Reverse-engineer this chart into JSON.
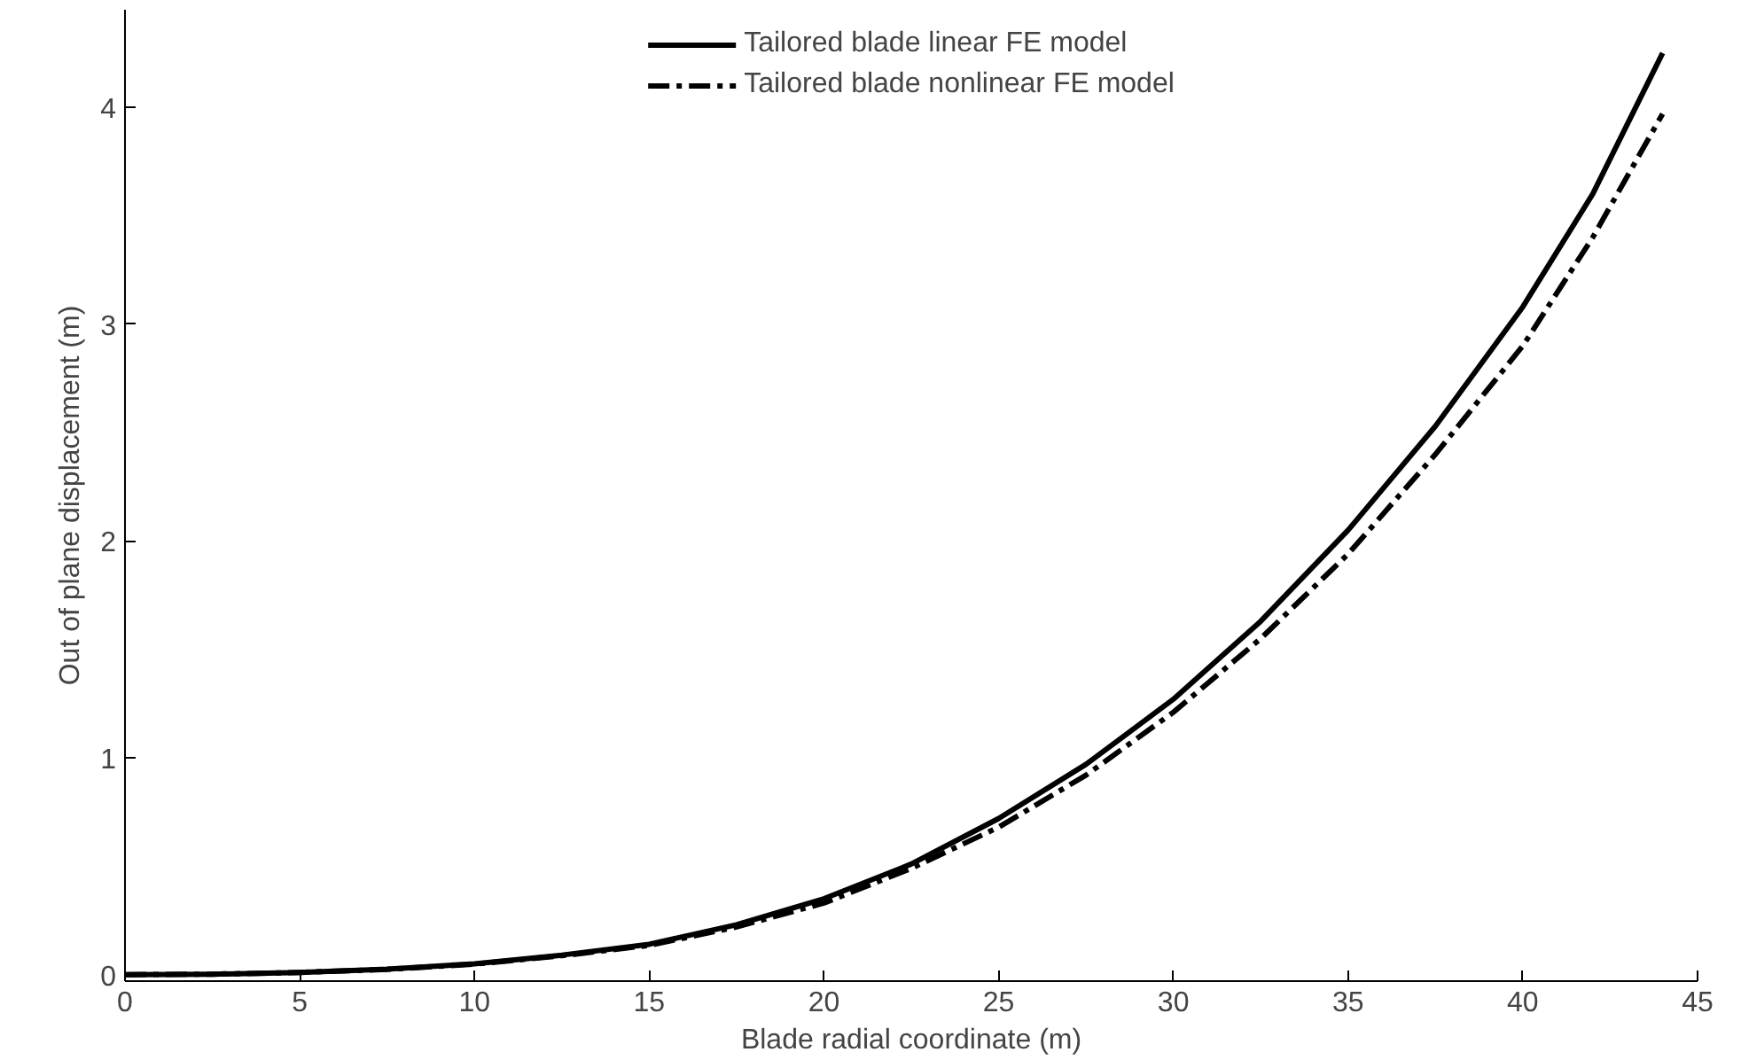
{
  "chart_data": {
    "type": "line",
    "xlabel": "Blade radial coordinate (m)",
    "ylabel": "Out of plane displacement (m)",
    "x": [
      0,
      2.5,
      5,
      7.5,
      10,
      12.5,
      15,
      17.5,
      20,
      22.5,
      25,
      27.5,
      30,
      32.5,
      35,
      37.5,
      40,
      42,
      44
    ],
    "series": [
      {
        "name": "Tailored blade linear FE model",
        "color": "#000000",
        "line_style": "solid",
        "values": [
          0,
          0.002,
          0.01,
          0.025,
          0.05,
          0.09,
          0.14,
          0.23,
          0.35,
          0.51,
          0.72,
          0.97,
          1.27,
          1.63,
          2.05,
          2.53,
          3.08,
          3.6,
          4.25
        ]
      },
      {
        "name": "Tailored blade nonlinear FE model",
        "color": "#000000",
        "line_style": "dashdot",
        "values": [
          0,
          0.002,
          0.01,
          0.024,
          0.048,
          0.087,
          0.135,
          0.22,
          0.33,
          0.49,
          0.68,
          0.92,
          1.21,
          1.55,
          1.94,
          2.4,
          2.9,
          3.4,
          3.97
        ]
      }
    ],
    "xlim": [
      0,
      45
    ],
    "xticks": [
      0,
      5,
      10,
      15,
      20,
      25,
      30,
      35,
      40,
      45
    ],
    "ylim": [
      -0.03,
      4.45
    ],
    "yticks": [
      0,
      1,
      2,
      3,
      4
    ],
    "grid": false,
    "legend": "top"
  }
}
